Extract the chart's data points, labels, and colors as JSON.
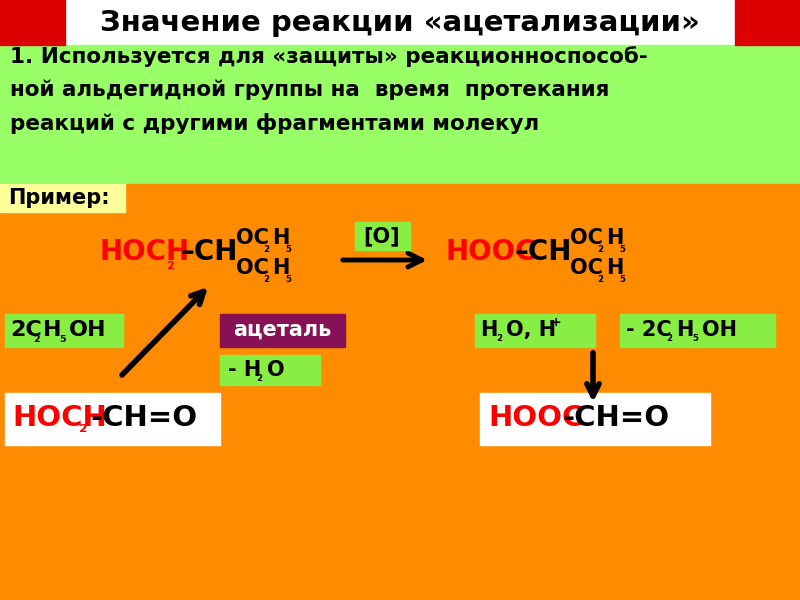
{
  "title": "Значение реакции «ацетализации»",
  "title_bg": "#ffffff",
  "title_color": "#000000",
  "title_fontsize": 21,
  "header_red_color": "#dd0000",
  "green_bg": "#99ff66",
  "orange_bg": "#ff8c00",
  "yellow_bg": "#ffff99",
  "white_bg": "#ffffff",
  "purple_bg": "#881155",
  "light_green_bg": "#88ee44",
  "text1_line1": "1. Используется для «защиты» реакционноспособ-",
  "text1_line2": "ной альдегидной группы на  время  протекания",
  "text1_line3": "реакций с другими фрагментами молекул",
  "primer_label": "Пример:",
  "acetal_label": "ацеталь",
  "red_color": "#ff0000",
  "black_color": "#000000",
  "white_color": "#ffffff"
}
